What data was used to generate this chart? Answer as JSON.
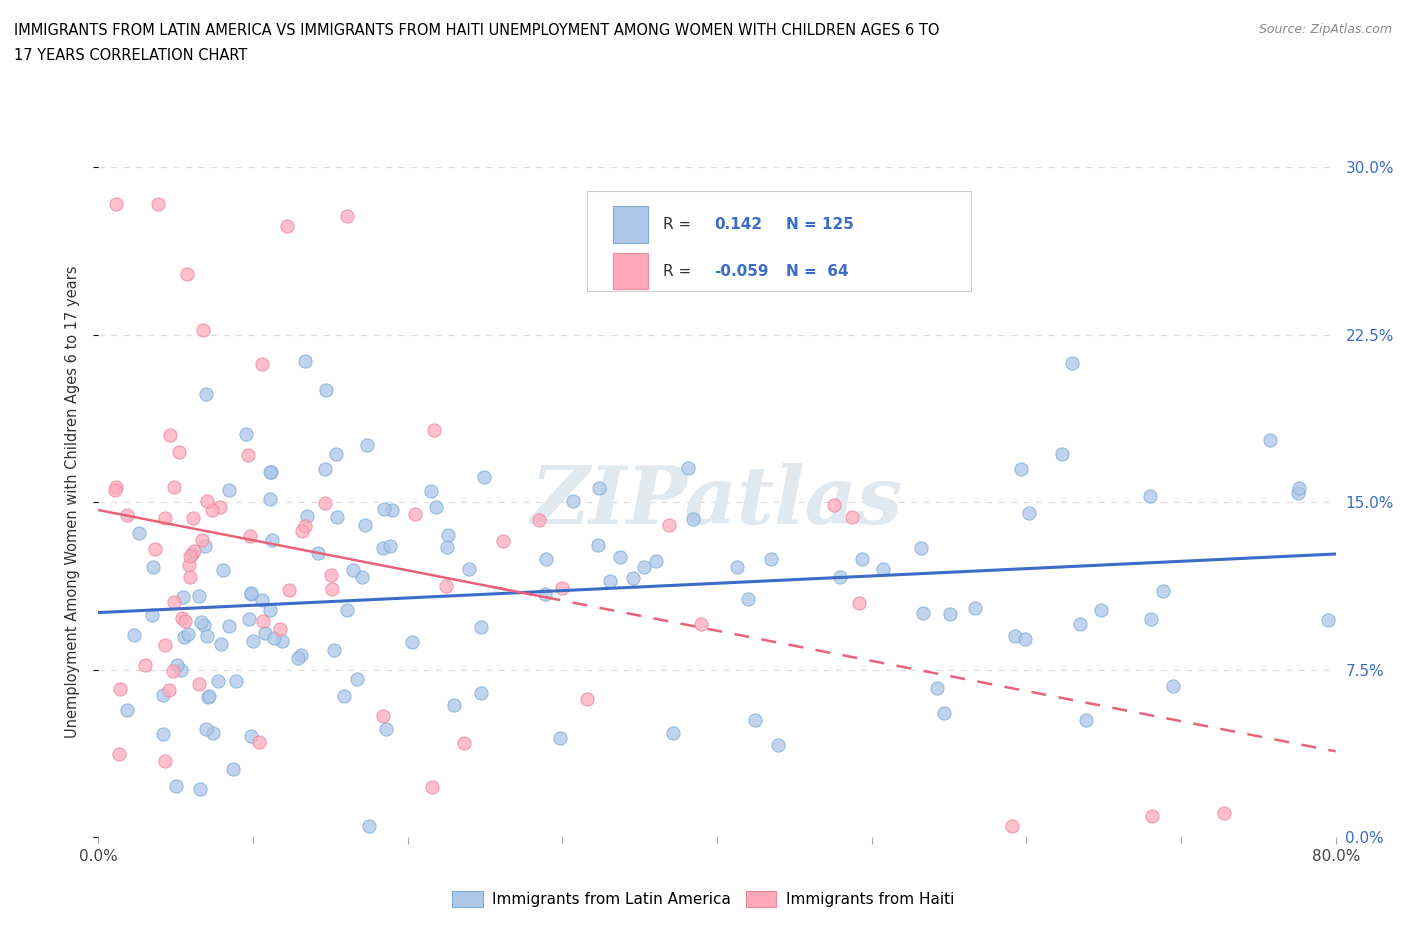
{
  "title_line1": "IMMIGRANTS FROM LATIN AMERICA VS IMMIGRANTS FROM HAITI UNEMPLOYMENT AMONG WOMEN WITH CHILDREN AGES 6 TO",
  "title_line2": "17 YEARS CORRELATION CHART",
  "source": "Source: ZipAtlas.com",
  "ylabel": "Unemployment Among Women with Children Ages 6 to 17 years",
  "xlim": [
    0.0,
    0.8
  ],
  "ylim": [
    0.0,
    0.3
  ],
  "xticks": [
    0.0,
    0.1,
    0.2,
    0.3,
    0.4,
    0.5,
    0.6,
    0.7,
    0.8
  ],
  "xticklabels": [
    "0.0%",
    "",
    "",
    "",
    "",
    "",
    "",
    "",
    "80.0%"
  ],
  "yticks": [
    0.0,
    0.075,
    0.15,
    0.225,
    0.3
  ],
  "right_ytick_labels": [
    "0.0%",
    "7.5%",
    "15.0%",
    "22.5%",
    "30.0%"
  ],
  "legend_r_blue": "0.142",
  "legend_n_blue": "125",
  "legend_r_pink": "-0.059",
  "legend_n_pink": "64",
  "blue_scatter_color": "#AEC6E8",
  "blue_edge_color": "#7BAFD4",
  "pink_scatter_color": "#FFAABB",
  "pink_edge_color": "#EE8899",
  "blue_line_color": "#3B6CC7",
  "pink_line_color": "#E8637A",
  "grid_color": "#DDDDDD",
  "watermark_color": "#E0E8F0",
  "watermark": "ZIPatlas"
}
